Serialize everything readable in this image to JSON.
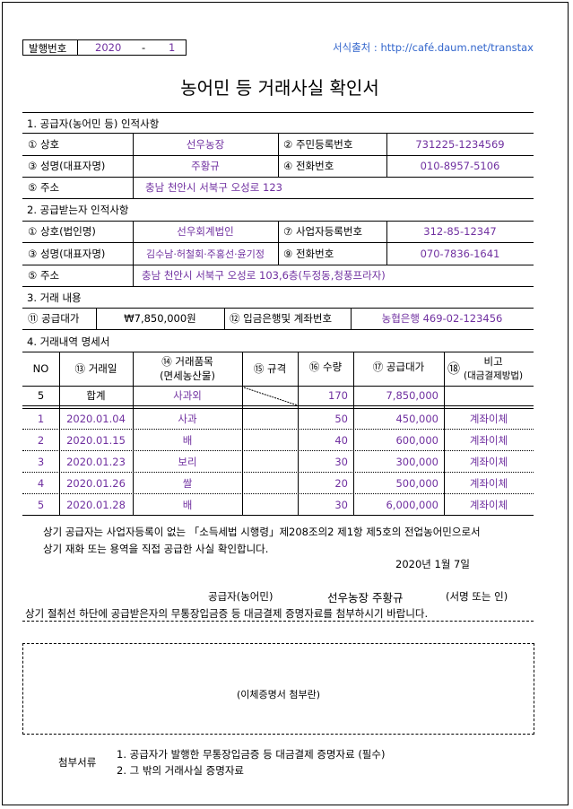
{
  "header": {
    "issue_label": "발행번호",
    "issue_year": "2020",
    "issue_dash": "-",
    "issue_no": "1",
    "source": "서식출처 : http://café.daum.net/transtax",
    "title": "농어민 등 거래사실 확인서"
  },
  "s1": {
    "heading": "1. 공급자(농어민 등) 인적사항",
    "rows": [
      {
        "l1": "①  상호",
        "v1": "선우농장",
        "l2": "②  주민등록번호",
        "v2": "731225-1234569"
      },
      {
        "l1": "③  성명(대표자명)",
        "v1": "주황규",
        "l2": "④  전화번호",
        "v2": "010-8957-5106"
      }
    ],
    "addr_label": "⑤  주소",
    "addr": "충남 천안시 서북구 오성로 123"
  },
  "s2": {
    "heading": "2. 공급받는자 인적사항",
    "rows": [
      {
        "l1": "①  상호(법인명)",
        "v1": "선우회계법인",
        "l2": "⑦  사업자등록번호",
        "v2": "312-85-12347"
      },
      {
        "l1": "③  성명(대표자명)",
        "v1": "김수남·허철회·주홍선·윤기정",
        "l2": "⑨  전화번호",
        "v2": "070-7836-1641"
      }
    ],
    "addr_label": "⑤  주소",
    "addr": "충남 천안시 서북구 오성로 103,6층(두정동,청풍프라자)"
  },
  "s3": {
    "heading": "3. 거래 내용",
    "l1": "⑪  공급대가",
    "v1": "₩7,850,000원",
    "l2": "⑫  입금은행및 계좌번호",
    "v2": "농협은행 469-02-123456"
  },
  "s4": {
    "heading": "4. 거래내역 명세서",
    "cols": {
      "no": "NO",
      "date": "⑬ 거래일",
      "item1": "⑭ 거래품목",
      "item2": "(면세농산물)",
      "spec": "⑮  규격",
      "qty": "⑯ 수량",
      "amt": "⑰ 공급대가",
      "note_no": "⑱",
      "note1": "비고",
      "note2": "(대금결제방법)"
    },
    "total": {
      "no": "5",
      "label": "합계",
      "item": "사과외",
      "qty": "170",
      "amt": "7,850,000"
    },
    "rows": [
      {
        "no": "1",
        "date": "2020.01.04",
        "item": "사과",
        "qty": "50",
        "amt": "450,000",
        "note": "계좌이체"
      },
      {
        "no": "2",
        "date": "2020.01.15",
        "item": "배",
        "qty": "40",
        "amt": "600,000",
        "note": "계좌이체"
      },
      {
        "no": "3",
        "date": "2020.01.23",
        "item": "보리",
        "qty": "30",
        "amt": "300,000",
        "note": "계좌이체"
      },
      {
        "no": "4",
        "date": "2020.01.26",
        "item": "쌀",
        "qty": "20",
        "amt": "500,000",
        "note": "계좌이체"
      },
      {
        "no": "5",
        "date": "2020.01.28",
        "item": "배",
        "qty": "30",
        "amt": "6,000,000",
        "note": "계좌이체"
      }
    ]
  },
  "footer": {
    "stmt1": "상기 공급자는 사업자등록이 없는 「소득세법 시행령」제208조의2 제1항 제5호의 전업농어민으로서",
    "stmt2": "상기 재화 또는 용역을 직접 공급한 사실 확인합니다.",
    "date": "2020년 1월 7일",
    "supplier_label": "공급자(농어민)",
    "supplier_name": "선우농장  주황규",
    "sign": "(서명 또는 인)",
    "notice": "상기 절취선 하단에 공급받은자의 무통장입금증 등 대금결제 증명자료를 첨부하시기 바랍니다.",
    "attach_box": "(이체증명서 첨부란)",
    "attach_label": "첨부서류",
    "attach_items": [
      "1. 공급자가 발행한 무통장입금증 등 대금결제 증명자료 (필수)",
      "2. 그 밖의 거래사실 증명자료"
    ]
  },
  "colors": {
    "value": "#7030a0",
    "link": "#3366cc"
  }
}
